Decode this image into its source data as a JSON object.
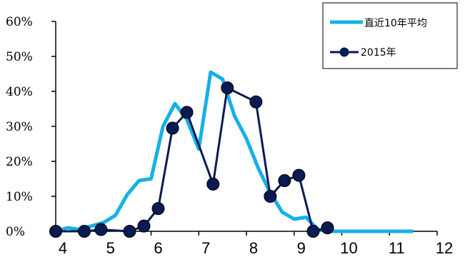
{
  "chart_data": {
    "type": "line",
    "x_ticks": [
      "4",
      "5",
      "6",
      "7",
      "8",
      "9",
      "10",
      "11",
      "12"
    ],
    "y_ticks": [
      "0%",
      "10%",
      "20%",
      "30%",
      "40%",
      "50%",
      "60%"
    ],
    "xlim": [
      4,
      12
    ],
    "ylim": [
      0,
      60
    ],
    "legend_position": "top-right",
    "grid": false,
    "series": [
      {
        "name": "直近10年平均",
        "color": "#14b1e7",
        "marker": "none",
        "x": [
          4.0,
          4.25,
          4.5,
          4.75,
          5.0,
          5.25,
          5.5,
          5.75,
          6.0,
          6.25,
          6.5,
          6.75,
          7.0,
          7.25,
          7.5,
          7.75,
          8.0,
          8.25,
          8.5,
          8.75,
          9.0,
          9.25,
          9.5,
          9.75,
          10.0,
          10.25,
          10.5,
          10.75,
          11.0,
          11.25,
          11.5
        ],
        "values": [
          0.0,
          1.0,
          0.5,
          1.5,
          2.5,
          4.5,
          10.5,
          14.5,
          15.0,
          30.0,
          36.5,
          32.0,
          23.5,
          45.5,
          43.5,
          33.0,
          26.5,
          18.0,
          11.0,
          5.5,
          3.5,
          4.0,
          0.5,
          0.0,
          0.0,
          0.0,
          0.0,
          0.0,
          0.0,
          0.0,
          0.0
        ]
      },
      {
        "name": "2015年",
        "color": "#0a1a52",
        "marker": "circle",
        "x": [
          4.0,
          4.6,
          4.95,
          5.55,
          5.85,
          6.15,
          6.45,
          6.75,
          7.3,
          7.6,
          8.2,
          8.5,
          8.8,
          9.1,
          9.4,
          9.7
        ],
        "values": [
          0.0,
          0.0,
          0.5,
          0.0,
          1.5,
          6.5,
          29.5,
          34.0,
          13.5,
          41.0,
          37.0,
          10.0,
          14.5,
          16.0,
          0.0,
          1.0
        ]
      }
    ]
  }
}
